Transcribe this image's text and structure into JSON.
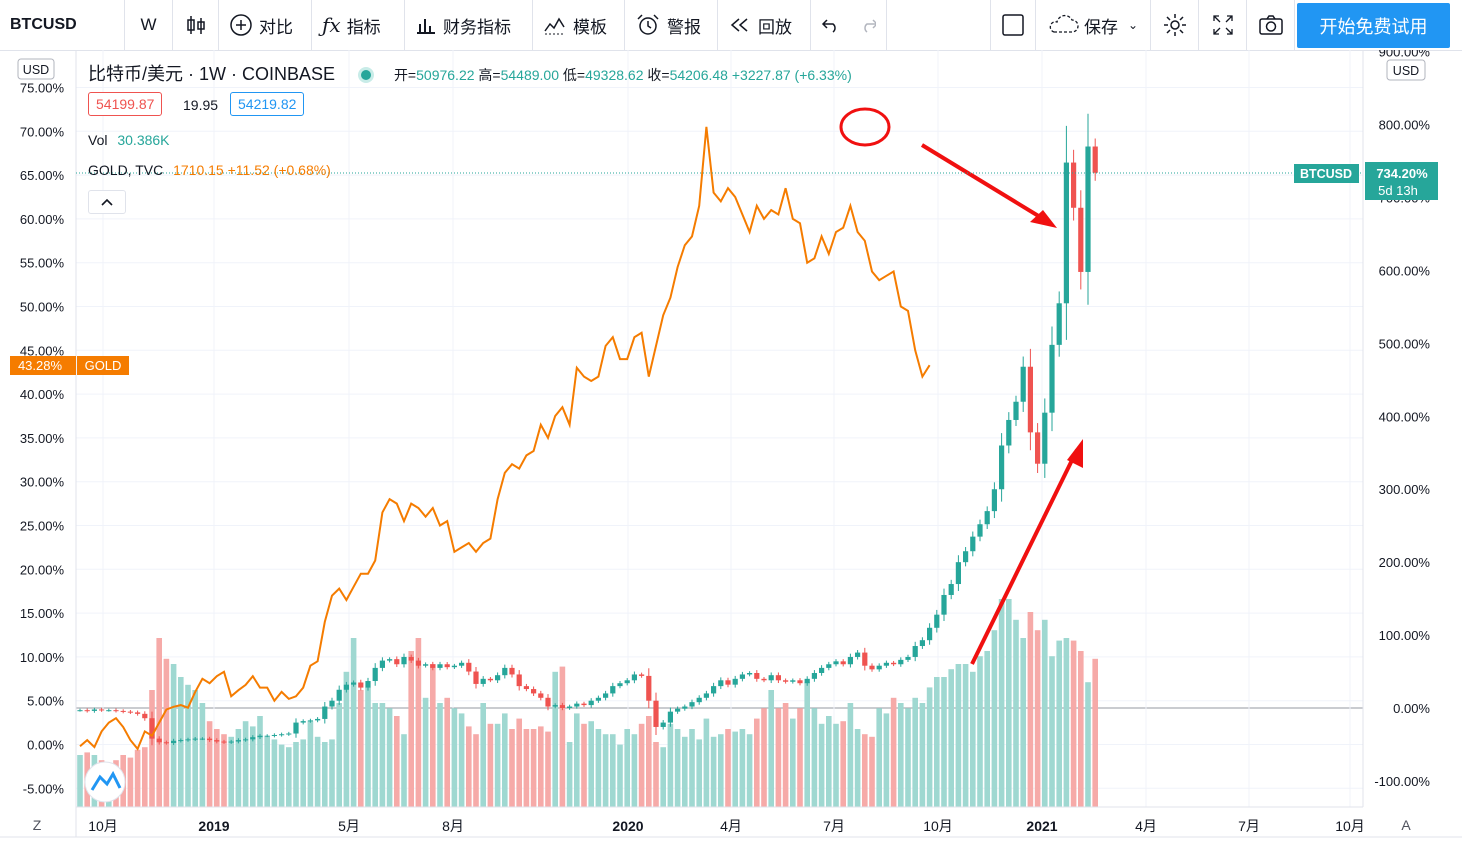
{
  "toolbar": {
    "symbol": "BTCUSD",
    "interval": "W",
    "compare": "对比",
    "indicators": "指标",
    "financials": "财务指标",
    "templates": "模板",
    "alerts": "警报",
    "replay": "回放",
    "save": "保存",
    "start_trial": "开始免费试用"
  },
  "legend": {
    "title": "比特币/美元 · 1W · COINBASE",
    "open_label": "开=",
    "open": "50976.22",
    "high_label": "高=",
    "high": "54489.00",
    "low_label": "低=",
    "low": "49328.62",
    "close_label": "收=",
    "close": "54206.48",
    "change": "+3227.87 (+6.33%)",
    "bid": "54199.87",
    "spread": "19.95",
    "ask": "54219.82",
    "vol_label": "Vol",
    "vol": "30.386K",
    "gold_label": "GOLD, TVC",
    "gold_value": "1710.15 +11.52 (+0.68%)",
    "currency_left": "USD",
    "currency_right": "USD",
    "collapse_icon": "chevron-up-icon"
  },
  "badges": {
    "btc_value": "734.20%",
    "btc_name": "BTCUSD",
    "btc_countdown": "5d 13h",
    "gold_value": "43.28%",
    "gold_name": "GOLD"
  },
  "axis_buttons": {
    "left": "Z",
    "right": "A"
  },
  "colors": {
    "up": "#26a69a",
    "down": "#ef5350",
    "gold": "#f57c00",
    "accent": "#2196f3",
    "annotation": "#f01010"
  },
  "chart_data": {
    "type": "line",
    "left_axis": {
      "ticks": [
        "75.00%",
        "70.00%",
        "65.00%",
        "60.00%",
        "55.00%",
        "50.00%",
        "45.00%",
        "40.00%",
        "35.00%",
        "30.00%",
        "25.00%",
        "20.00%",
        "15.00%",
        "10.00%",
        "5.00%",
        "0.00%",
        "-5.00%"
      ],
      "range": [
        -6,
        76
      ]
    },
    "right_axis": {
      "ticks": [
        "900.00%",
        "800.00%",
        "700.00%",
        "600.00%",
        "500.00%",
        "400.00%",
        "300.00%",
        "200.00%",
        "100.00%",
        "0.00%",
        "-100.00%"
      ],
      "range": [
        -120,
        900
      ]
    },
    "x_ticks": [
      "10月",
      "2019",
      "5月",
      "8月",
      "2020",
      "4月",
      "7月",
      "10月",
      "2021",
      "4月",
      "7月",
      "10月"
    ],
    "series": [
      {
        "name": "GOLD",
        "axis": "left",
        "values": [
          -0.2,
          0.5,
          -0.3,
          1.5,
          2.5,
          3.0,
          2.0,
          0.5,
          -0.5,
          1.5,
          1.0,
          2.5,
          4.0,
          4.3,
          4.5,
          4.2,
          6.0,
          7.5,
          7.0,
          7.8,
          8.3,
          5.5,
          6.2,
          6.8,
          7.8,
          6.5,
          6.5,
          5.0,
          6.0,
          5.2,
          5.5,
          6.5,
          9.0,
          9.5,
          14.0,
          17.0,
          17.8,
          16.5,
          18.0,
          19.5,
          19.5,
          21.0,
          26.5,
          28.0,
          27.5,
          25.5,
          27.5,
          27.0,
          26.0,
          27.0,
          25.0,
          25.5,
          22.0,
          22.5,
          23.0,
          22.0,
          23.0,
          23.5,
          28.0,
          31.0,
          32.0,
          31.5,
          33.0,
          33.5,
          36.5,
          35.0,
          37.5,
          38.5,
          36.5,
          43.0,
          42.0,
          41.5,
          42.0,
          45.5,
          46.5,
          44.0,
          44.0,
          46.5,
          47.0,
          42.0,
          45.5,
          49.0,
          51.0,
          54.5,
          57.0,
          58.0,
          61.5,
          70.5,
          63.0,
          62.0,
          63.5,
          62.5,
          60.5,
          58.5,
          61.5,
          60.0,
          61.0,
          60.5,
          63.5,
          60.0,
          59.5,
          55.0,
          55.5,
          58.0,
          56.0,
          58.5,
          59.0,
          61.5,
          58.5,
          57.5,
          54.0,
          53.0,
          53.5,
          54.0,
          50.0,
          49.5,
          45.0,
          42.0,
          43.3
        ]
      },
      {
        "name": "BTCUSD",
        "axis": "right",
        "close": [
          -3,
          -4,
          -2,
          -3,
          -3,
          -4,
          -5,
          -6,
          -8,
          -14,
          -42,
          -47,
          -48,
          -45,
          -44,
          -43,
          -42,
          -42,
          -44,
          -46,
          -47,
          -46,
          -44,
          -43,
          -40,
          -38,
          -38,
          -37,
          -36,
          -35,
          -20,
          -18,
          -17,
          -15,
          2,
          10,
          25,
          32,
          35,
          28,
          37,
          55,
          65,
          67,
          60,
          70,
          65,
          58,
          60,
          55,
          60,
          56,
          58,
          62,
          50,
          33,
          40,
          38,
          45,
          55,
          46,
          30,
          26,
          20,
          14,
          2,
          4,
          0,
          2,
          6,
          4,
          10,
          14,
          20,
          30,
          34,
          38,
          46,
          44,
          10,
          -26,
          -20,
          -5,
          -1,
          2,
          8,
          14,
          20,
          30,
          38,
          32,
          40,
          46,
          48,
          40,
          38,
          45,
          38,
          36,
          38,
          34,
          40,
          48,
          55,
          60,
          64,
          60,
          70,
          76,
          58,
          53,
          58,
          62,
          60,
          66,
          70,
          85,
          93,
          110,
          128,
          155,
          170,
          200,
          215,
          235,
          252,
          270,
          300,
          360,
          395,
          420,
          468,
          378,
          335,
          405,
          498,
          555,
          748,
          686,
          598,
          770,
          734
        ]
      }
    ],
    "volume": {
      "name": "Vol",
      "values": [
        20,
        21,
        20,
        18,
        16,
        18,
        20,
        19,
        22,
        23,
        45,
        65,
        57,
        55,
        50,
        47,
        45,
        40,
        33,
        30,
        28,
        27,
        30,
        33,
        31,
        35,
        27,
        26,
        24,
        23,
        25,
        26,
        33,
        27,
        25,
        26,
        40,
        52,
        65,
        45,
        46,
        40,
        40,
        38,
        35,
        28,
        60,
        65,
        42,
        55,
        40,
        42,
        38,
        36,
        31,
        28,
        40,
        32,
        32,
        36,
        30,
        34,
        30,
        30,
        31,
        29,
        52,
        54,
        25,
        36,
        32,
        33,
        30,
        28,
        28,
        24,
        30,
        28,
        32,
        35,
        25,
        23,
        32,
        30,
        27,
        30,
        26,
        34,
        27,
        28,
        30,
        29,
        30,
        28,
        34,
        38,
        45,
        38,
        40,
        34,
        38,
        48,
        38,
        32,
        35,
        32,
        33,
        40,
        30,
        28,
        27,
        38,
        36,
        42,
        40,
        38,
        42,
        40,
        46,
        50,
        50,
        53,
        55,
        55,
        52,
        58,
        60,
        68,
        80,
        80,
        72,
        65,
        75,
        68,
        72,
        58,
        64,
        65,
        64,
        60,
        48,
        57
      ]
    },
    "annotations": [
      "red circle at gold peak (Aug 2020)",
      "red arrow pointing down toward gold",
      "red arrow pointing up along BTC rally"
    ]
  }
}
